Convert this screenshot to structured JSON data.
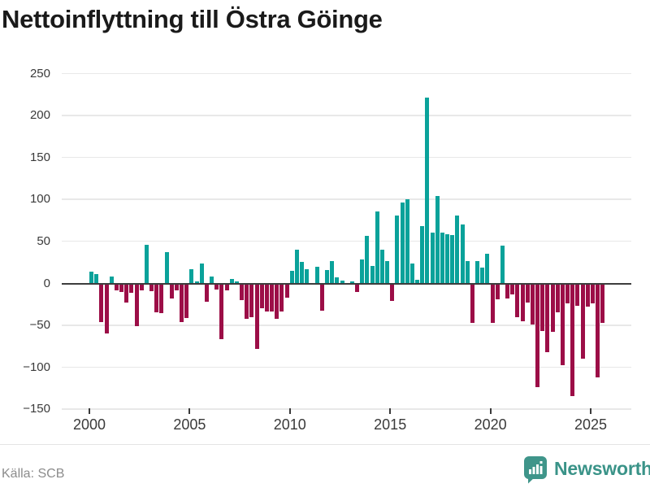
{
  "title": "Nettoinflyttning till Östra Göinge",
  "chart_data": {
    "type": "bar",
    "title": "Nettoinflyttning till Östra Göinge",
    "x_unit": "quarter",
    "start_year": 2000,
    "start_quarter": 1,
    "end_year": 2025,
    "end_quarter": 3,
    "values": [
      14,
      11,
      -46,
      -60,
      8,
      -8,
      -10,
      -23,
      -11,
      -51,
      -8,
      46,
      -9,
      -34,
      -35,
      37,
      -18,
      -8,
      -46,
      -41,
      17,
      2,
      24,
      -22,
      8,
      -7,
      -66,
      -8,
      5,
      2,
      -20,
      -42,
      -40,
      -78,
      -30,
      -33,
      -33,
      -42,
      -33,
      -17,
      15,
      40,
      26,
      17,
      0,
      20,
      -32,
      16,
      27,
      7,
      3,
      0,
      2,
      -10,
      29,
      57,
      21,
      86,
      40,
      27,
      -21,
      81,
      96,
      100,
      24,
      4,
      68,
      221,
      61,
      104,
      61,
      59,
      58,
      81,
      70,
      27,
      -47,
      27,
      19,
      35,
      -47,
      -19,
      45,
      -18,
      -13,
      -40,
      -45,
      -23,
      -49,
      -124,
      -57,
      -82,
      -58,
      -34,
      -97,
      -24,
      -134,
      -27,
      -90,
      -28,
      -24,
      -112,
      -47
    ],
    "ylim": [
      -150,
      250
    ],
    "y_ticks": [
      250,
      200,
      150,
      100,
      50,
      0,
      -50,
      -100,
      -150
    ],
    "x_ticks": [
      2000,
      2005,
      2010,
      2015,
      2020,
      2025
    ],
    "grid": true,
    "legend": "none",
    "positive_color": "#0aa29a",
    "negative_color": "#9c0e47",
    "grid_color": "#e8e8e8",
    "zero_line_color": "#3d3d3d",
    "axis_text_color": "#3a3a3a"
  },
  "footer": {
    "source": "Källa: SCB",
    "logo_text": "Newsworthy",
    "logo_color": "#3f958a"
  }
}
